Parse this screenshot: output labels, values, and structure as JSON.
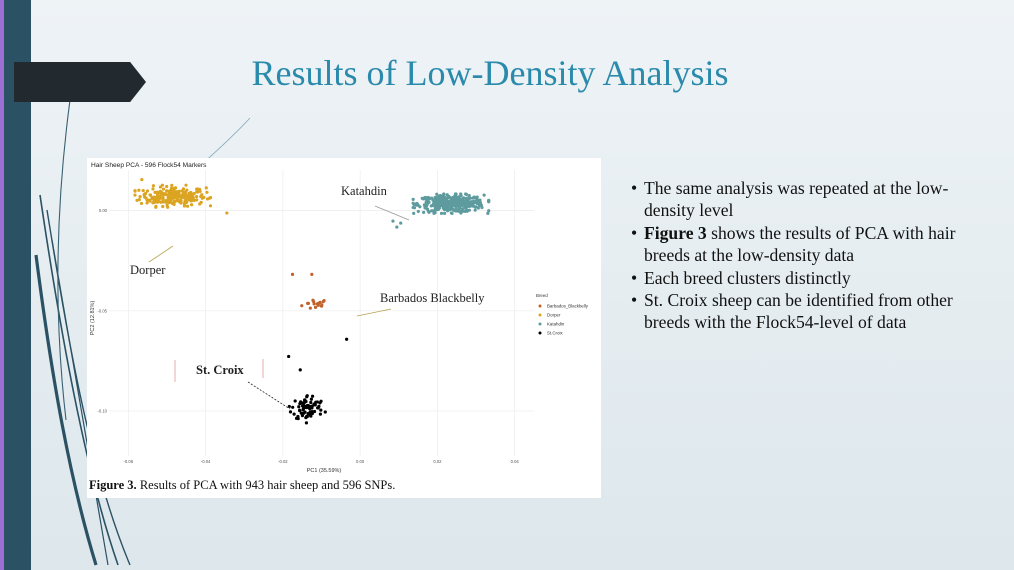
{
  "slide": {
    "title": "Results of Low-Density Analysis",
    "caption_bold": "Figure 3.",
    "caption_rest": " Results of PCA with 943 hair sheep and 596 SNPs.",
    "bullets": [
      {
        "bold": "",
        "text": "The same analysis was repeated at the low-density level"
      },
      {
        "bold": "Figure 3",
        "text": " shows the results of PCA with hair breeds at the low-density data"
      },
      {
        "bold": "",
        "text": "Each breed clusters distinctly"
      },
      {
        "bold": "",
        "text": "St. Croix sheep can be identified from other breeds with the Flock54-level of data"
      }
    ],
    "colors": {
      "title": "#2a8aab",
      "sidebar": "#2b5264",
      "tab": "#222a2f",
      "frame": "#9b6fd3"
    }
  },
  "chart_data": {
    "type": "scatter",
    "title": "Hair Sheep PCA - 596 Flock54 Markers",
    "xlabel": "PC1 (35.59%)",
    "ylabel": "PC2 (12.81%)",
    "xlim": [
      -0.065,
      0.045
    ],
    "ylim": [
      -0.1225,
      0.0203
    ],
    "x_ticks": [
      -0.06,
      -0.04,
      -0.02,
      0.0,
      0.02,
      0.04
    ],
    "x_tick_labels": [
      "-0.06",
      "-0.04",
      "-0.02",
      "0.00",
      "0.02",
      "0.04"
    ],
    "y_ticks": [
      0.0,
      -0.05,
      -0.1
    ],
    "y_tick_labels": [
      "0.00",
      "-0.05",
      "-0.10"
    ],
    "legend": {
      "title": "Breed",
      "position": "right"
    },
    "series": [
      {
        "name": "Barbados_Blackbelly",
        "label": "Barbados Blackbelly",
        "color": "#c0622a",
        "center": [
          -0.0115,
          -0.0467
        ],
        "spread": [
          0.0035,
          0.0028
        ],
        "n": 16,
        "extra_points": [
          [
            -0.0175,
            -0.0318
          ],
          [
            -0.0125,
            -0.0318
          ]
        ]
      },
      {
        "name": "Dorper",
        "label": "Dorper",
        "color": "#dba421",
        "center": [
          -0.0485,
          0.0072
        ],
        "spread": [
          0.0085,
          0.0048
        ],
        "n": 230,
        "extra_points": [
          [
            -0.0565,
            0.0155
          ],
          [
            -0.0345,
            -0.0012
          ]
        ]
      },
      {
        "name": "Katahdin",
        "label": "Katahdin",
        "color": "#5e9b9e",
        "center": [
          0.0235,
          0.0035
        ],
        "spread": [
          0.0085,
          0.0042
        ],
        "n": 380,
        "extra_points": [
          [
            0.0085,
            -0.0052
          ],
          [
            0.0095,
            -0.0082
          ],
          [
            0.0105,
            -0.0062
          ]
        ]
      },
      {
        "name": "St.Croix",
        "label": "St. Croix",
        "color": "#000000",
        "center": [
          -0.0135,
          -0.0985
        ],
        "spread": [
          0.0042,
          0.0065
        ],
        "n": 75,
        "extra_points": [
          [
            -0.0185,
            -0.0728
          ],
          [
            -0.0035,
            -0.0642
          ],
          [
            -0.0155,
            -0.0795
          ]
        ]
      }
    ],
    "annotations": [
      {
        "text": "Katahdin",
        "bold": false
      },
      {
        "text": "Dorper",
        "bold": false
      },
      {
        "text": "Barbados Blackbelly",
        "bold": false
      },
      {
        "text": "St. Croix",
        "bold": true
      }
    ]
  }
}
